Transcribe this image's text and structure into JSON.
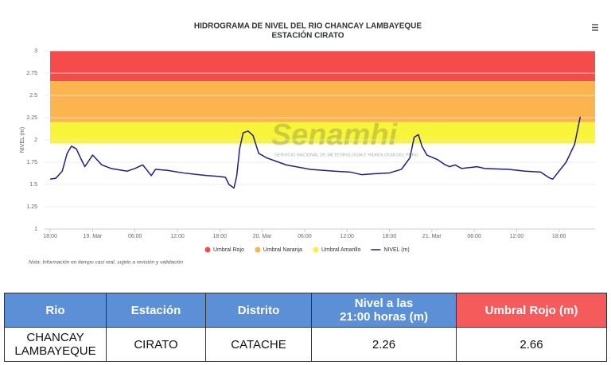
{
  "chart_data": {
    "type": "line",
    "title": "HIDROGRAMA DE NIVEL DEL RIO CHANCAY LAMBAYEQUE",
    "subtitle": "ESTACIÓN CIRATO",
    "y_label": "NIVEL (m)",
    "watermark": "Senamhi",
    "watermark_sub": "SERVICIO NACIONAL DE METEOROLOGÍA E HIDROLOGÍA DEL PERÚ",
    "note": "Nota: Información en tiempo casi real, sujeto a revisión y validación",
    "ylim": [
      1,
      3
    ],
    "yticks": [
      1,
      1.25,
      1.5,
      1.75,
      2,
      2.25,
      2.5,
      2.75,
      3
    ],
    "xlim": [
      -0.8,
      77.1
    ],
    "xticks": [
      {
        "value": 0,
        "label": "18:00"
      },
      {
        "value": 6,
        "label": "19. Mar"
      },
      {
        "value": 12,
        "label": "06:00"
      },
      {
        "value": 18,
        "label": "12:00"
      },
      {
        "value": 24,
        "label": "18:00"
      },
      {
        "value": 30,
        "label": "20. Mar"
      },
      {
        "value": 36,
        "label": "06:00"
      },
      {
        "value": 42,
        "label": "12:00"
      },
      {
        "value": 48,
        "label": "18:00"
      },
      {
        "value": 54,
        "label": "21. Mar"
      },
      {
        "value": 60,
        "label": "06:00"
      },
      {
        "value": 66,
        "label": "12:00"
      },
      {
        "value": 72,
        "label": "18:00"
      }
    ],
    "grid": true,
    "bands": [
      {
        "name": "Umbral Rojo",
        "color": "#f44b4b",
        "from": 2.66,
        "to": 3
      },
      {
        "name": "Umbral Naranja",
        "color": "#fbb44e",
        "from": 2.2,
        "to": 2.66
      },
      {
        "name": "Umbral Amarillo",
        "color": "#f7f43a",
        "from": 1.96,
        "to": 2.2
      }
    ],
    "series": [
      {
        "name": "NIVEL (m)",
        "color": "#1f1d8a",
        "x": [
          0,
          0.8,
          1.7,
          2.4,
          3.0,
          3.7,
          4.4,
          4.9,
          5.5,
          6.0,
          6.6,
          7.3,
          8.6,
          10.9,
          12.0,
          13.1,
          13.8,
          14.3,
          14.9,
          16.5,
          18.8,
          22.2,
          23.9,
          24.8,
          25.3,
          26.0,
          26.4,
          26.8,
          27.3,
          28.0,
          28.7,
          29.5,
          30.6,
          33.4,
          36.8,
          40.2,
          42.4,
          44.1,
          45.8,
          48.0,
          49.7,
          50.9,
          51.5,
          52.1,
          52.6,
          53.3,
          54.8,
          55.9,
          56.5,
          57.3,
          58.2,
          60.4,
          61.5,
          64.9,
          67.2,
          69.4,
          70.5,
          71.1,
          71.7,
          73.0,
          74.2,
          75.0
        ],
        "values": [
          1.56,
          1.57,
          1.65,
          1.85,
          1.93,
          1.9,
          1.78,
          1.7,
          1.77,
          1.83,
          1.78,
          1.72,
          1.68,
          1.65,
          1.68,
          1.72,
          1.65,
          1.6,
          1.67,
          1.66,
          1.63,
          1.6,
          1.59,
          1.58,
          1.5,
          1.46,
          1.6,
          1.9,
          2.08,
          2.1,
          2.05,
          1.85,
          1.8,
          1.72,
          1.67,
          1.65,
          1.64,
          1.61,
          1.62,
          1.63,
          1.67,
          1.8,
          2.03,
          2.06,
          1.93,
          1.83,
          1.78,
          1.72,
          1.7,
          1.72,
          1.68,
          1.7,
          1.68,
          1.67,
          1.65,
          1.64,
          1.58,
          1.56,
          1.62,
          1.75,
          1.95,
          2.26
        ]
      }
    ]
  },
  "table": {
    "header": [
      "Rio",
      "Estación",
      "Distrito",
      "Nivel a las\n21:00 horas (m)",
      "Umbral Rojo (m)"
    ],
    "rows": [
      [
        "CHANCAY\nLAMBAYEQUE",
        "CIRATO",
        "CATACHE",
        "2.26",
        "2.66"
      ]
    ]
  }
}
